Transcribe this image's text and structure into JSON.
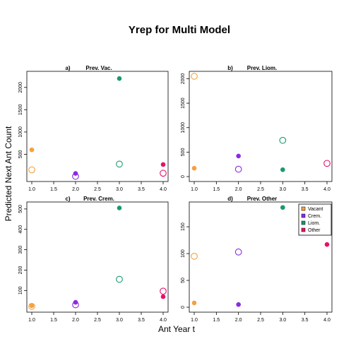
{
  "figure": {
    "title": "Yrep for Multi Model",
    "ylabel": "Predicted Next Ant Count",
    "xlabel": "Ant Year t"
  },
  "legend": {
    "placement": "top-right of panel d",
    "items": [
      {
        "label": "Vacant",
        "color": "#F5A040"
      },
      {
        "label": "Crem.",
        "color": "#8A2BE2"
      },
      {
        "label": "Liom.",
        "color": "#1A9970"
      },
      {
        "label": "Other",
        "color": "#E8106A"
      }
    ]
  },
  "chart_data": [
    {
      "type": "scatter",
      "panel_label": "a)",
      "title": "Prev. Vac.",
      "xlim": [
        1,
        4
      ],
      "xticks": [
        "1.0",
        "1.5",
        "2.0",
        "2.5",
        "3.0",
        "3.5",
        "4.0"
      ],
      "ylim": [
        0,
        2250
      ],
      "yticks": [
        500,
        1000,
        1500,
        2000
      ],
      "points": [
        {
          "x": 1,
          "y": 600,
          "series": "Vacant",
          "style": "filled"
        },
        {
          "x": 1,
          "y": 150,
          "series": "Vacant",
          "style": "open"
        },
        {
          "x": 2,
          "y": 70,
          "series": "Crem.",
          "style": "filled"
        },
        {
          "x": 2,
          "y": 5,
          "series": "Crem.",
          "style": "open"
        },
        {
          "x": 3,
          "y": 2200,
          "series": "Liom.",
          "style": "filled"
        },
        {
          "x": 3,
          "y": 280,
          "series": "Liom.",
          "style": "open"
        },
        {
          "x": 4,
          "y": 270,
          "series": "Other",
          "style": "filled"
        },
        {
          "x": 4,
          "y": 75,
          "series": "Other",
          "style": "open"
        }
      ]
    },
    {
      "type": "scatter",
      "panel_label": "b)",
      "title": "Prev. Liom.",
      "xlim": [
        1,
        4
      ],
      "xticks": [
        "1.0",
        "1.5",
        "2.0",
        "2.5",
        "3.0",
        "3.5",
        "4.0"
      ],
      "ylim": [
        0,
        2050
      ],
      "yticks": [
        0,
        500,
        1000,
        1500,
        2000
      ],
      "points": [
        {
          "x": 1,
          "y": 170,
          "series": "Vacant",
          "style": "filled"
        },
        {
          "x": 1,
          "y": 2050,
          "series": "Vacant",
          "style": "open"
        },
        {
          "x": 2,
          "y": 420,
          "series": "Crem.",
          "style": "filled"
        },
        {
          "x": 2,
          "y": 150,
          "series": "Crem.",
          "style": "open"
        },
        {
          "x": 3,
          "y": 140,
          "series": "Liom.",
          "style": "filled"
        },
        {
          "x": 3,
          "y": 740,
          "series": "Liom.",
          "style": "open"
        },
        {
          "x": 4,
          "y": 270,
          "series": "Other",
          "style": "open"
        }
      ]
    },
    {
      "type": "scatter",
      "panel_label": "c)",
      "title": "Prev. Crem.",
      "xlim": [
        1,
        4
      ],
      "xticks": [
        "1.0",
        "1.5",
        "2.0",
        "2.5",
        "3.0",
        "3.5",
        "4.0"
      ],
      "ylim": [
        18,
        510
      ],
      "yticks": [
        100,
        200,
        300,
        400,
        500
      ],
      "points": [
        {
          "x": 1,
          "y": 25,
          "series": "Vacant",
          "style": "filled"
        },
        {
          "x": 1,
          "y": 22,
          "series": "Vacant",
          "style": "open"
        },
        {
          "x": 2,
          "y": 42,
          "series": "Crem.",
          "style": "filled"
        },
        {
          "x": 2,
          "y": 30,
          "series": "Crem.",
          "style": "open"
        },
        {
          "x": 3,
          "y": 505,
          "series": "Liom.",
          "style": "filled"
        },
        {
          "x": 3,
          "y": 155,
          "series": "Liom.",
          "style": "open"
        },
        {
          "x": 4,
          "y": 70,
          "series": "Other",
          "style": "filled"
        },
        {
          "x": 4,
          "y": 97,
          "series": "Other",
          "style": "open"
        }
      ]
    },
    {
      "type": "scatter",
      "panel_label": "d)",
      "title": "Prev. Other",
      "xlim": [
        1,
        4
      ],
      "xticks": [
        "1.0",
        "1.5",
        "2.0",
        "2.5",
        "3.0",
        "3.5",
        "4.0"
      ],
      "ylim": [
        0,
        187
      ],
      "yticks": [
        0,
        50,
        100,
        150
      ],
      "points": [
        {
          "x": 1,
          "y": 8,
          "series": "Vacant",
          "style": "filled"
        },
        {
          "x": 1,
          "y": 95,
          "series": "Vacant",
          "style": "open"
        },
        {
          "x": 2,
          "y": 5,
          "series": "Crem.",
          "style": "filled"
        },
        {
          "x": 2,
          "y": 103,
          "series": "Crem.",
          "style": "open"
        },
        {
          "x": 3,
          "y": 186,
          "series": "Liom.",
          "style": "filled"
        },
        {
          "x": 4,
          "y": 117,
          "series": "Other",
          "style": "filled"
        }
      ]
    }
  ]
}
